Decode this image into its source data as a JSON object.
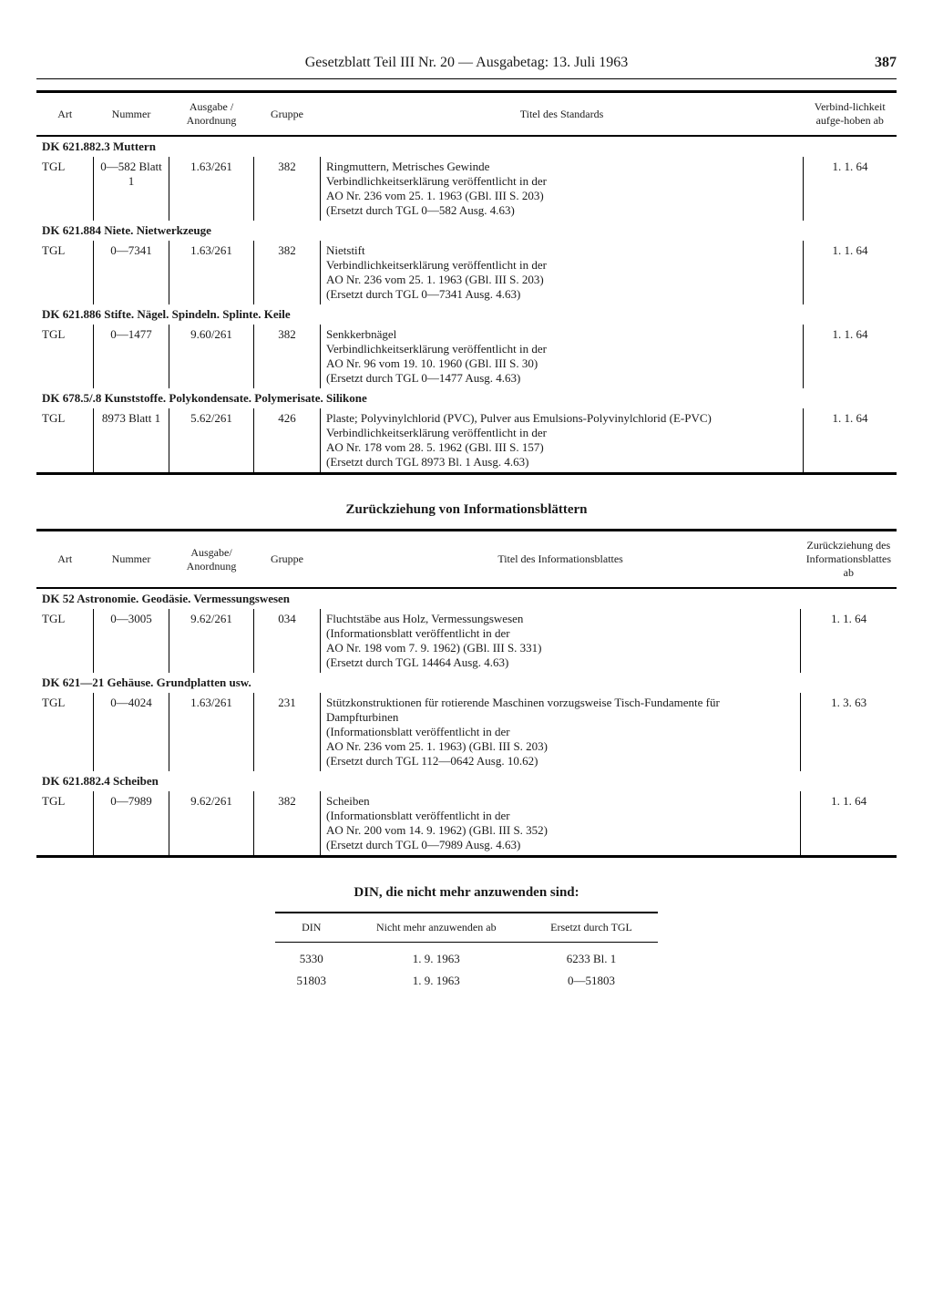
{
  "header": {
    "title": "Gesetzblatt Teil III Nr. 20 — Ausgabetag: 13. Juli 1963",
    "page_number": "387"
  },
  "table1": {
    "columns": {
      "art": "Art",
      "nummer": "Nummer",
      "ausgabe": "Ausgabe / Anordnung",
      "gruppe": "Gruppe",
      "titel": "Titel des Standards",
      "date": "Verbind-lichkeit aufge-hoben ab"
    },
    "sections": [
      {
        "header": "DK 621.882.3 Muttern",
        "rows": [
          {
            "art": "TGL",
            "nummer": "0—582 Blatt 1",
            "ausgabe": "1.63/261",
            "gruppe": "382",
            "titel": "Ringmuttern, Metrisches Gewinde\nVerbindlichkeitserklärung veröffentlicht in der\nAO Nr. 236 vom 25. 1. 1963 (GBl. III S. 203)\n(Ersetzt durch TGL 0—582 Ausg. 4.63)",
            "date": "1.  1. 64"
          }
        ]
      },
      {
        "header": "DK 621.884 Niete. Nietwerkzeuge",
        "rows": [
          {
            "art": "TGL",
            "nummer": "0—7341",
            "ausgabe": "1.63/261",
            "gruppe": "382",
            "titel": "Nietstift\nVerbindlichkeitserklärung veröffentlicht in der\nAO Nr. 236 vom 25. 1. 1963 (GBl. III S. 203)\n(Ersetzt durch TGL 0—7341 Ausg. 4.63)",
            "date": "1.  1. 64"
          }
        ]
      },
      {
        "header": "DK 621.886 Stifte. Nägel. Spindeln. Splinte. Keile",
        "rows": [
          {
            "art": "TGL",
            "nummer": "0—1477",
            "ausgabe": "9.60/261",
            "gruppe": "382",
            "titel": "Senkkerbnägel\nVerbindlichkeitserklärung veröffentlicht in der\nAO Nr. 96 vom 19. 10. 1960 (GBl. III S. 30)\n(Ersetzt durch TGL 0—1477 Ausg. 4.63)",
            "date": "1.  1. 64"
          }
        ]
      },
      {
        "header": "DK 678.5/.8 Kunststoffe. Polykondensate. Polymerisate. Silikone",
        "rows": [
          {
            "art": "TGL",
            "nummer": "8973 Blatt 1",
            "ausgabe": "5.62/261",
            "gruppe": "426",
            "titel": "Plaste; Polyvinylchlorid (PVC), Pulver aus Emulsions-Polyvinylchlorid (E-PVC)\nVerbindlichkeitserklärung veröffentlicht in der\nAO Nr. 178 vom 28. 5. 1962 (GBl. III S. 157)\n(Ersetzt durch TGL 8973 Bl. 1 Ausg. 4.63)",
            "date": "1.  1. 64"
          }
        ]
      }
    ]
  },
  "heading2": "Zurückziehung von Informationsblättern",
  "table2": {
    "columns": {
      "art": "Art",
      "nummer": "Nummer",
      "ausgabe": "Ausgabe/ Anordnung",
      "gruppe": "Gruppe",
      "titel": "Titel des Informationsblattes",
      "date": "Zurückziehung des Informationsblattes ab"
    },
    "sections": [
      {
        "header": "DK 52 Astronomie. Geodäsie. Vermessungswesen",
        "rows": [
          {
            "art": "TGL",
            "nummer": "0—3005",
            "ausgabe": "9.62/261",
            "gruppe": "034",
            "titel": "Fluchtstäbe aus Holz, Vermessungswesen\n(Informationsblatt veröffentlicht in der\nAO Nr. 198 vom 7. 9. 1962) (GBl. III S. 331)\n(Ersetzt durch TGL 14464 Ausg. 4.63)",
            "date": "1.  1. 64"
          }
        ]
      },
      {
        "header": "DK 621—21 Gehäuse. Grundplatten usw.",
        "rows": [
          {
            "art": "TGL",
            "nummer": "0—4024",
            "ausgabe": "1.63/261",
            "gruppe": "231",
            "titel": "Stützkonstruktionen für rotierende Maschinen vorzugsweise Tisch-Fundamente für Dampfturbinen\n(Informationsblatt veröffentlicht in der\nAO Nr. 236 vom 25. 1. 1963) (GBl. III S. 203)\n(Ersetzt durch TGL 112—0642 Ausg. 10.62)",
            "date": "1.  3. 63"
          }
        ]
      },
      {
        "header": "DK 621.882.4 Scheiben",
        "rows": [
          {
            "art": "TGL",
            "nummer": "0—7989",
            "ausgabe": "9.62/261",
            "gruppe": "382",
            "titel": "Scheiben\n(Informationsblatt veröffentlicht in der\nAO Nr. 200 vom 14. 9. 1962) (GBl. III S. 352)\n(Ersetzt durch TGL 0—7989 Ausg. 4.63)",
            "date": "1.  1. 64"
          }
        ]
      }
    ]
  },
  "heading3": "DIN, die nicht mehr anzuwenden sind:",
  "din_table": {
    "columns": {
      "din": "DIN",
      "ab": "Nicht mehr anzuwenden ab",
      "ersetzt": "Ersetzt durch TGL"
    },
    "rows": [
      {
        "din": "5330",
        "ab": "1. 9. 1963",
        "ersetzt": "6233 Bl. 1"
      },
      {
        "din": "51803",
        "ab": "1. 9. 1963",
        "ersetzt": "0—51803"
      }
    ]
  }
}
